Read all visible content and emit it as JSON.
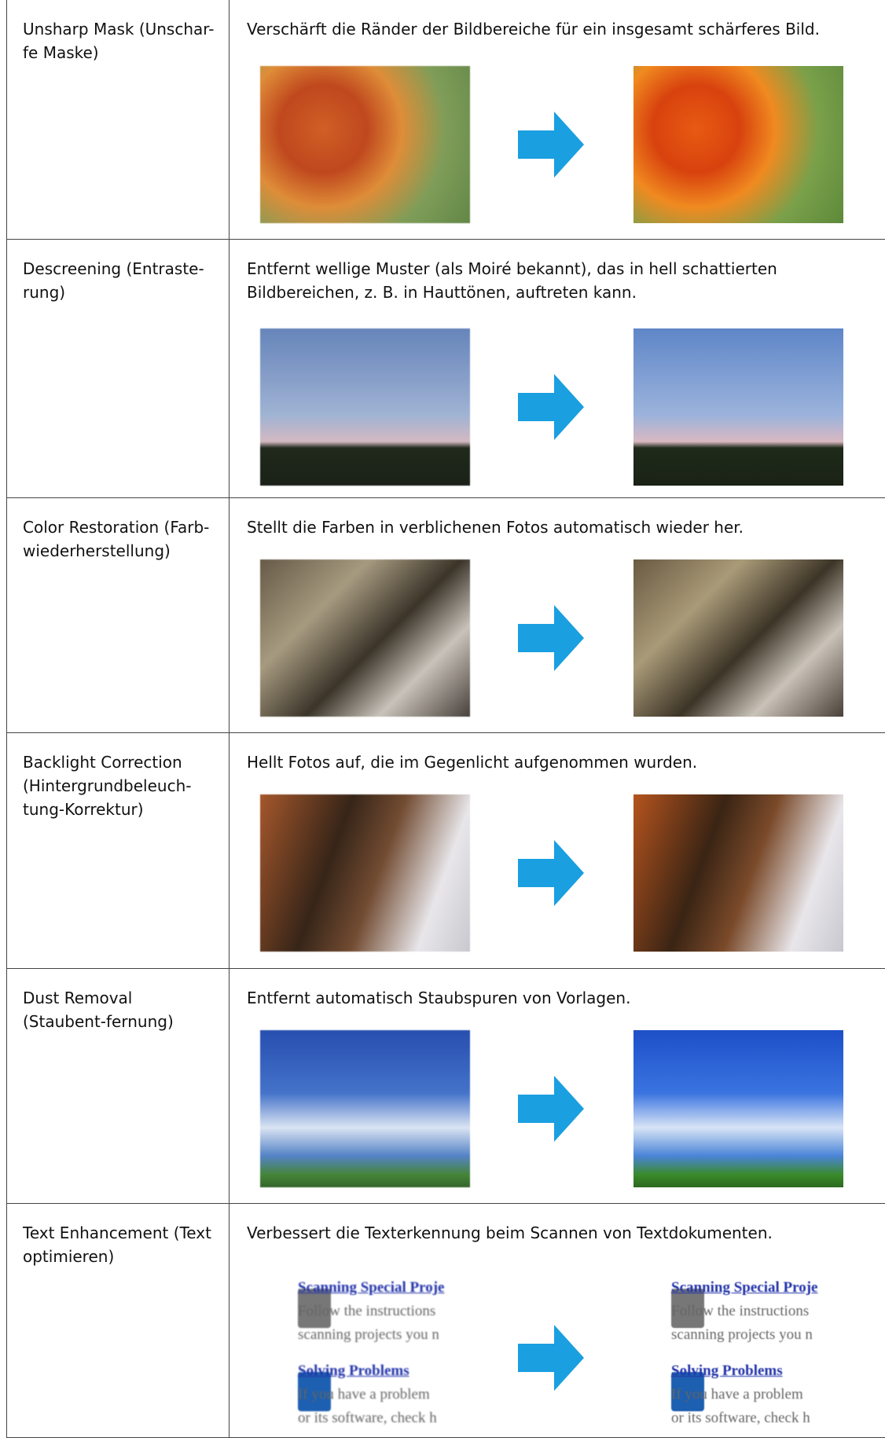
{
  "table": {
    "rows": [
      {
        "label": "Unsharp Mask (Unschar-fe Maske)",
        "description": "Verschärft die Ränder der Bildbereiche für ein insgesamt schärferes Bild."
      },
      {
        "label": "Descreening (Entraste-rung)",
        "description": "Entfernt wellige Muster (als Moiré bekannt), das in hell schattierten Bildbereichen, z. B. in Hauttönen, auftreten kann."
      },
      {
        "label": "Color Restoration (Farb-wiederherstellung)",
        "description": "Stellt die Farben in verblichenen Fotos automatisch wieder her."
      },
      {
        "label": "Backlight Correction (Hintergrundbeleuch-tung-Korrektur)",
        "description": "Hellt Fotos auf, die im Gegenlicht aufgenommen wurden."
      },
      {
        "label": "Dust Removal (Staubent-fernung)",
        "description": "Entfernt automatisch Staubspuren von Vorlagen."
      },
      {
        "label": "Text Enhancement (Text optimieren)",
        "description": "Verbessert die Texterkennung beim Scannen von Textdokumenten.",
        "sample_text": [
          "Scanning Special Proje",
          "Follow the instructions",
          "scanning projects you n",
          "Solving Problems",
          "If you have a problem",
          "or its software, check h"
        ]
      }
    ]
  }
}
